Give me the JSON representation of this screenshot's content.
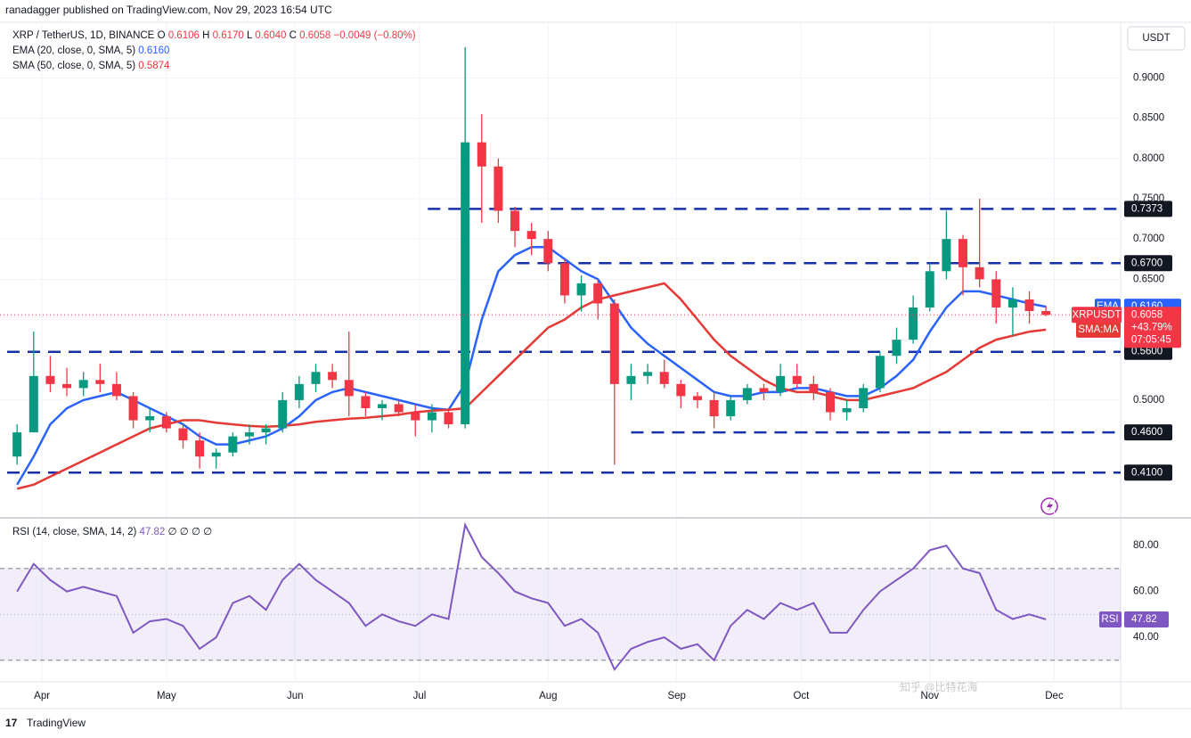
{
  "header": {
    "text": "ranadagger published on TradingView.com, Nov 29, 2023 16:54 UTC"
  },
  "footer": {
    "logo": "17",
    "brand": "TradingView"
  },
  "watermark": "知乎 @比特花海",
  "chart_data": [
    {
      "type": "candlestick",
      "title": "XRP / TetherUS, 1D, BINANCE",
      "ohlc_legend": [
        {
          "label": "O",
          "value": "0.6106"
        },
        {
          "label": "H",
          "value": "0.6170"
        },
        {
          "label": "L",
          "value": "0.6040"
        },
        {
          "label": "C",
          "value": "0.6058"
        }
      ],
      "change": "−0.0049 (−0.80%)",
      "currency": "USDT",
      "up_color": "#089981",
      "down_color": "#f23645",
      "x": [
        85,
        89,
        93,
        97,
        101,
        105,
        109,
        113,
        117,
        121,
        125,
        129,
        133,
        137,
        141,
        145,
        149,
        153,
        157,
        161,
        165,
        169,
        173,
        177,
        181,
        185,
        189,
        193,
        197,
        201,
        205,
        209,
        213,
        217,
        221,
        225,
        229,
        233,
        237,
        241,
        245,
        249,
        253,
        257,
        261,
        265,
        269,
        273,
        277,
        281,
        285,
        289,
        293,
        297,
        301,
        305,
        309,
        313,
        317,
        321,
        325,
        329,
        333
      ],
      "open": [
        0.43,
        0.46,
        0.53,
        0.52,
        0.515,
        0.525,
        0.52,
        0.505,
        0.475,
        0.48,
        0.465,
        0.45,
        0.43,
        0.435,
        0.455,
        0.46,
        0.465,
        0.5,
        0.52,
        0.535,
        0.525,
        0.505,
        0.49,
        0.495,
        0.485,
        0.475,
        0.485,
        0.47,
        0.82,
        0.79,
        0.735,
        0.71,
        0.7,
        0.67,
        0.63,
        0.645,
        0.62,
        0.52,
        0.53,
        0.535,
        0.52,
        0.505,
        0.5,
        0.48,
        0.5,
        0.515,
        0.51,
        0.53,
        0.52,
        0.51,
        0.485,
        0.49,
        0.515,
        0.555,
        0.575,
        0.615,
        0.66,
        0.7,
        0.665,
        0.65,
        0.615,
        0.625,
        0.6106
      ],
      "high": [
        0.47,
        0.585,
        0.555,
        0.54,
        0.535,
        0.545,
        0.535,
        0.51,
        0.49,
        0.485,
        0.47,
        0.46,
        0.44,
        0.46,
        0.47,
        0.47,
        0.51,
        0.53,
        0.545,
        0.545,
        0.585,
        0.51,
        0.5,
        0.5,
        0.495,
        0.495,
        0.49,
        0.938,
        0.855,
        0.8,
        0.74,
        0.72,
        0.71,
        0.675,
        0.655,
        0.65,
        0.625,
        0.545,
        0.545,
        0.55,
        0.525,
        0.51,
        0.51,
        0.505,
        0.52,
        0.52,
        0.545,
        0.545,
        0.53,
        0.515,
        0.5,
        0.52,
        0.56,
        0.59,
        0.63,
        0.67,
        0.735,
        0.705,
        0.75,
        0.66,
        0.64,
        0.635,
        0.617
      ],
      "low": [
        0.42,
        0.46,
        0.51,
        0.505,
        0.505,
        0.51,
        0.5,
        0.465,
        0.46,
        0.46,
        0.44,
        0.415,
        0.415,
        0.43,
        0.445,
        0.445,
        0.46,
        0.49,
        0.51,
        0.515,
        0.48,
        0.48,
        0.475,
        0.48,
        0.455,
        0.46,
        0.465,
        0.465,
        0.72,
        0.72,
        0.69,
        0.68,
        0.66,
        0.62,
        0.61,
        0.6,
        0.42,
        0.5,
        0.52,
        0.515,
        0.49,
        0.49,
        0.465,
        0.475,
        0.495,
        0.5,
        0.505,
        0.515,
        0.5,
        0.475,
        0.475,
        0.485,
        0.51,
        0.545,
        0.57,
        0.61,
        0.65,
        0.63,
        0.64,
        0.595,
        0.58,
        0.595,
        0.604
      ],
      "close": [
        0.46,
        0.53,
        0.52,
        0.515,
        0.525,
        0.52,
        0.505,
        0.475,
        0.48,
        0.465,
        0.45,
        0.43,
        0.435,
        0.455,
        0.46,
        0.465,
        0.5,
        0.52,
        0.535,
        0.525,
        0.505,
        0.49,
        0.495,
        0.485,
        0.475,
        0.485,
        0.47,
        0.82,
        0.79,
        0.735,
        0.71,
        0.7,
        0.67,
        0.63,
        0.645,
        0.62,
        0.52,
        0.53,
        0.535,
        0.52,
        0.505,
        0.5,
        0.48,
        0.5,
        0.515,
        0.51,
        0.53,
        0.52,
        0.51,
        0.485,
        0.49,
        0.515,
        0.555,
        0.575,
        0.615,
        0.66,
        0.7,
        0.665,
        0.65,
        0.615,
        0.625,
        0.6106,
        0.6058
      ],
      "series": [
        {
          "name": "EMA (20, close, 0, SMA, 5)",
          "tag": "EMA",
          "last_label": "0.6160",
          "color": "#2962ff",
          "values": [
            0.395,
            0.43,
            0.47,
            0.49,
            0.5,
            0.505,
            0.51,
            0.5,
            0.49,
            0.48,
            0.47,
            0.455,
            0.445,
            0.445,
            0.45,
            0.455,
            0.465,
            0.48,
            0.5,
            0.51,
            0.515,
            0.51,
            0.505,
            0.5,
            0.495,
            0.49,
            0.488,
            0.52,
            0.6,
            0.66,
            0.68,
            0.69,
            0.69,
            0.675,
            0.66,
            0.65,
            0.62,
            0.59,
            0.57,
            0.555,
            0.54,
            0.525,
            0.51,
            0.505,
            0.505,
            0.51,
            0.51,
            0.515,
            0.515,
            0.51,
            0.505,
            0.505,
            0.515,
            0.53,
            0.55,
            0.585,
            0.615,
            0.635,
            0.635,
            0.63,
            0.625,
            0.62,
            0.616
          ]
        },
        {
          "name": "SMA (50, close, 0, SMA, 5)",
          "tag": "SMA:MA",
          "last_label": "0.5874",
          "color": "#e53935",
          "values": [
            0.39,
            0.395,
            0.405,
            0.415,
            0.425,
            0.435,
            0.445,
            0.455,
            0.465,
            0.47,
            0.475,
            0.475,
            0.472,
            0.47,
            0.468,
            0.467,
            0.468,
            0.47,
            0.473,
            0.475,
            0.477,
            0.478,
            0.48,
            0.482,
            0.485,
            0.487,
            0.488,
            0.49,
            0.51,
            0.53,
            0.55,
            0.57,
            0.59,
            0.6,
            0.615,
            0.625,
            0.63,
            0.635,
            0.64,
            0.645,
            0.625,
            0.6,
            0.575,
            0.555,
            0.54,
            0.525,
            0.515,
            0.51,
            0.51,
            0.505,
            0.5,
            0.5,
            0.505,
            0.51,
            0.515,
            0.525,
            0.535,
            0.55,
            0.565,
            0.575,
            0.58,
            0.585,
            0.5874
          ]
        }
      ],
      "price_tag": {
        "name": "XRPUSDT",
        "value": "0.6058",
        "change": "+43.79%",
        "countdown": "07:05:45"
      },
      "levels": [
        {
          "value": 0.7373,
          "label": "0.7373",
          "x_start": 184
        },
        {
          "value": 0.67,
          "label": "0.6700",
          "x_start": 205.5
        },
        {
          "value": 0.56,
          "label": "0.5600",
          "x_start": 82.6
        },
        {
          "value": 0.46,
          "label": "0.4600",
          "x_start": 233
        },
        {
          "value": 0.41,
          "label": "0.4100",
          "x_start": 82.6
        }
      ],
      "level_color": "#1530a8",
      "xlim": [
        82.6,
        351
      ],
      "xticks": [
        {
          "value": 91,
          "label": "Apr"
        },
        {
          "value": 121,
          "label": "May"
        },
        {
          "value": 152,
          "label": "Jun"
        },
        {
          "value": 182,
          "label": "Jul"
        },
        {
          "value": 213,
          "label": "Aug"
        },
        {
          "value": 244,
          "label": "Sep"
        },
        {
          "value": 274,
          "label": "Oct"
        },
        {
          "value": 305,
          "label": "Nov"
        },
        {
          "value": 335,
          "label": "Dec"
        }
      ],
      "ylim": [
        0.355,
        0.969
      ],
      "yticks": [
        {
          "value": 0.9,
          "label": "0.9000"
        },
        {
          "value": 0.85,
          "label": "0.8500"
        },
        {
          "value": 0.8,
          "label": "0.8000"
        },
        {
          "value": 0.75,
          "label": "0.7500"
        },
        {
          "value": 0.7,
          "label": "0.7000"
        },
        {
          "value": 0.65,
          "label": "0.6500"
        },
        {
          "value": 0.5,
          "label": "0.5000"
        }
      ],
      "grid": true
    },
    {
      "type": "line",
      "title": "RSI (14, close, SMA, 14, 2)",
      "last_label": "47.82",
      "extra": "∅ ∅ ∅ ∅",
      "x": [
        85,
        89,
        93,
        97,
        101,
        105,
        109,
        113,
        117,
        121,
        125,
        129,
        133,
        137,
        141,
        145,
        149,
        153,
        157,
        161,
        165,
        169,
        173,
        177,
        181,
        185,
        189,
        193,
        197,
        201,
        205,
        209,
        213,
        217,
        221,
        225,
        229,
        233,
        237,
        241,
        245,
        249,
        253,
        257,
        261,
        265,
        269,
        273,
        277,
        281,
        285,
        289,
        293,
        297,
        301,
        305,
        309,
        313,
        317,
        321,
        325,
        329,
        333
      ],
      "series": [
        {
          "name": "RSI",
          "color": "#7e57c2",
          "values": [
            60,
            72,
            65,
            60,
            62,
            60,
            58,
            42,
            47,
            48,
            45,
            35,
            40,
            55,
            58,
            52,
            65,
            72,
            65,
            60,
            55,
            45,
            50,
            47,
            45,
            50,
            48,
            89,
            75,
            68,
            60,
            57,
            55,
            45,
            48,
            42,
            26,
            35,
            38,
            40,
            35,
            37,
            30,
            45,
            52,
            48,
            55,
            52,
            55,
            42,
            42,
            52,
            60,
            65,
            70,
            78,
            80,
            70,
            68,
            52,
            48,
            50,
            47.82
          ]
        }
      ],
      "band": [
        30,
        70
      ],
      "midline": 50,
      "ylim": [
        20.6,
        91.7
      ],
      "yticks": [
        {
          "value": 80,
          "label": "80.00"
        },
        {
          "value": 60,
          "label": "60.00"
        },
        {
          "value": 40,
          "label": "40.00"
        }
      ]
    }
  ]
}
